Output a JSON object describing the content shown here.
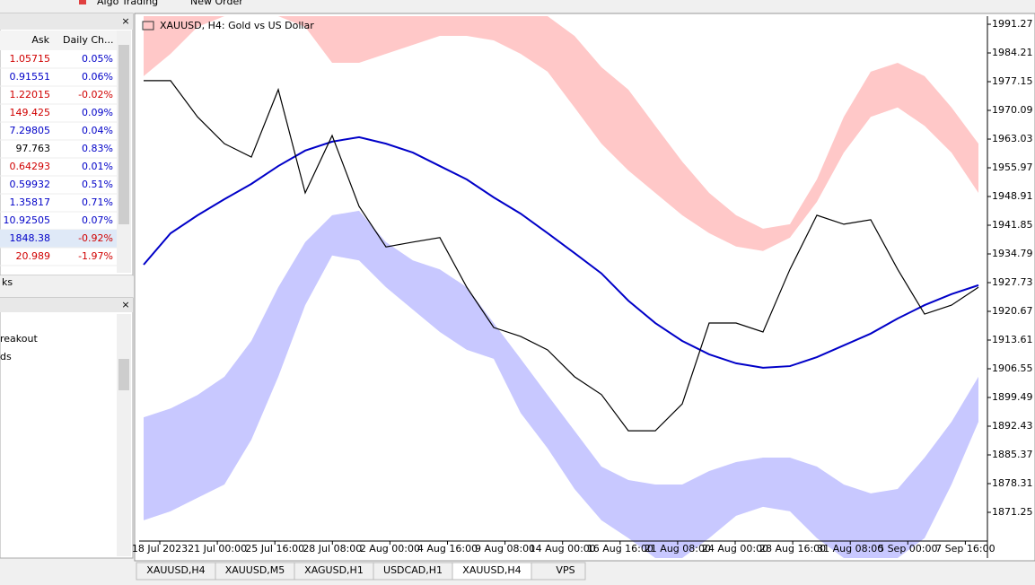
{
  "toolbar": {
    "items": [
      "Algo Trading",
      "New Order"
    ]
  },
  "market_watch": {
    "columns": [
      "Ask",
      "Daily Ch..."
    ],
    "rows": [
      {
        "ask": "1.05715",
        "ask_color": "#d00000",
        "change": "0.05%",
        "change_color": "#0000c8"
      },
      {
        "ask": "0.91551",
        "ask_color": "#0000c8",
        "change": "0.06%",
        "change_color": "#0000c8"
      },
      {
        "ask": "1.22015",
        "ask_color": "#d00000",
        "change": "-0.02%",
        "change_color": "#d00000"
      },
      {
        "ask": "149.425",
        "ask_color": "#d00000",
        "change": "0.09%",
        "change_color": "#0000c8"
      },
      {
        "ask": "7.29805",
        "ask_color": "#0000c8",
        "change": "0.04%",
        "change_color": "#0000c8"
      },
      {
        "ask": "97.763",
        "ask_color": "#000000",
        "change": "0.83%",
        "change_color": "#0000c8"
      },
      {
        "ask": "0.64293",
        "ask_color": "#d00000",
        "change": "0.01%",
        "change_color": "#0000c8"
      },
      {
        "ask": "0.59932",
        "ask_color": "#0000c8",
        "change": "0.51%",
        "change_color": "#0000c8"
      },
      {
        "ask": "1.35817",
        "ask_color": "#0000c8",
        "change": "0.71%",
        "change_color": "#0000c8"
      },
      {
        "ask": "10.92505",
        "ask_color": "#0000c8",
        "change": "0.07%",
        "change_color": "#0000c8"
      },
      {
        "ask": "1848.38",
        "ask_color": "#0000c8",
        "change": "-0.92%",
        "change_color": "#d00000"
      },
      {
        "ask": "20.989",
        "ask_color": "#d00000",
        "change": "-1.97%",
        "change_color": "#d00000"
      }
    ]
  },
  "left_panel": {
    "tab": "ks",
    "items": [
      "reakout",
      "ds"
    ]
  },
  "chart_data": {
    "type": "line",
    "title": "XAUUSD, H4:  Gold vs US Dollar",
    "ylim": [
      1860.0,
      1993.26
    ],
    "yticks": [
      1991.27,
      1984.21,
      1977.15,
      1970.09,
      1963.03,
      1955.97,
      1948.91,
      1941.85,
      1934.79,
      1927.73,
      1920.67,
      1913.61,
      1906.55,
      1899.49,
      1892.43,
      1885.37,
      1878.31,
      1871.25
    ],
    "time_labels": [
      "18 Jul 2023",
      "21 Jul 00:00",
      "25 Jul 16:00",
      "28 Jul 08:00",
      "2 Aug 00:00",
      "4 Aug 16:00",
      "9 Aug 08:00",
      "14 Aug 00:00",
      "16 Aug 16:00",
      "21 Aug 08:00",
      "24 Aug 00:00",
      "28 Aug 16:00",
      "31 Aug 08:00",
      "5 Sep 00:00",
      "7 Sep 16:00"
    ],
    "bands": [
      {
        "color": "#ffc8c8",
        "upper": [
          1993.26,
          1993.26,
          1993.26,
          1993.26,
          1993.26,
          1993.26,
          1993.26,
          1993.26,
          1993.26,
          1993.26,
          1993.26,
          1993.26,
          1993.26,
          1993.26,
          1993.26,
          1993.26,
          1988.4,
          1980.7,
          1975.2,
          1966.3,
          1957.5,
          1949.8,
          1944.3,
          1941.0,
          1942.1,
          1953.1,
          1968.5,
          1979.6,
          1981.8,
          1978.5,
          1970.8,
          1961.9
        ],
        "lower": [
          1978.5,
          1984.0,
          1990.6,
          1993.26,
          1993.26,
          1993.26,
          1990.6,
          1981.8,
          1981.8,
          1984.0,
          1986.2,
          1988.4,
          1988.4,
          1987.3,
          1984.0,
          1979.6,
          1970.8,
          1961.9,
          1955.3,
          1949.8,
          1944.3,
          1939.9,
          1936.6,
          1935.5,
          1938.8,
          1947.6,
          1959.7,
          1968.5,
          1970.8,
          1966.3,
          1959.7,
          1949.8
        ]
      },
      {
        "color": "#c8c8ff",
        "upper": [
          1894.6,
          1896.8,
          1900.1,
          1904.6,
          1913.4,
          1926.6,
          1937.7,
          1944.3,
          1945.4,
          1937.7,
          1933.2,
          1931.0,
          1926.6,
          1917.8,
          1909.0,
          1900.1,
          1891.3,
          1882.5,
          1879.2,
          1878.1,
          1878.1,
          1881.4,
          1883.6,
          1884.7,
          1884.7,
          1882.5,
          1878.1,
          1875.9,
          1877.0,
          1884.7,
          1893.5,
          1904.6
        ],
        "lower": [
          1869.3,
          1871.5,
          1874.8,
          1878.1,
          1889.1,
          1904.6,
          1922.2,
          1934.4,
          1933.2,
          1926.6,
          1921.1,
          1915.6,
          1911.2,
          1909.0,
          1895.7,
          1887.0,
          1877.0,
          1869.3,
          1864.9,
          1860.0,
          1860.0,
          1864.9,
          1870.4,
          1872.6,
          1871.5,
          1864.9,
          1860.0,
          1860.0,
          1860.0,
          1864.9,
          1878.1,
          1893.5
        ]
      }
    ],
    "series": [
      {
        "color": "#0000c8",
        "values": [
          1932.14,
          1939.86,
          1944.28,
          1948.25,
          1952.0,
          1956.4,
          1960.2,
          1962.4,
          1963.5,
          1961.9,
          1959.7,
          1956.4,
          1953.1,
          1948.7,
          1944.7,
          1939.9,
          1935.0,
          1930.0,
          1923.3,
          1917.8,
          1913.4,
          1910.1,
          1907.9,
          1906.8,
          1907.2,
          1909.4,
          1912.3,
          1915.2,
          1918.9,
          1922.2,
          1924.9,
          1927.1
        ]
      },
      {
        "color": "#000000",
        "values": [
          1977.4,
          1977.4,
          1968.5,
          1961.9,
          1958.6,
          1975.2,
          1949.8,
          1963.9,
          1946.5,
          1936.5,
          1937.7,
          1938.8,
          1926.6,
          1916.7,
          1914.5,
          1911.2,
          1904.6,
          1900.2,
          1891.3,
          1891.3,
          1897.9,
          1917.8,
          1917.8,
          1915.6,
          1931.0,
          1944.3,
          1942.1,
          1943.2,
          1931.0,
          1920.0,
          1922.2,
          1926.6
        ]
      }
    ]
  },
  "tabs": {
    "items": [
      "XAUUSD,H4",
      "XAUUSD,M5",
      "XAGUSD,H1",
      "USDCAD,H1",
      "XAUUSD,H4",
      "VPS"
    ],
    "active": 4
  }
}
